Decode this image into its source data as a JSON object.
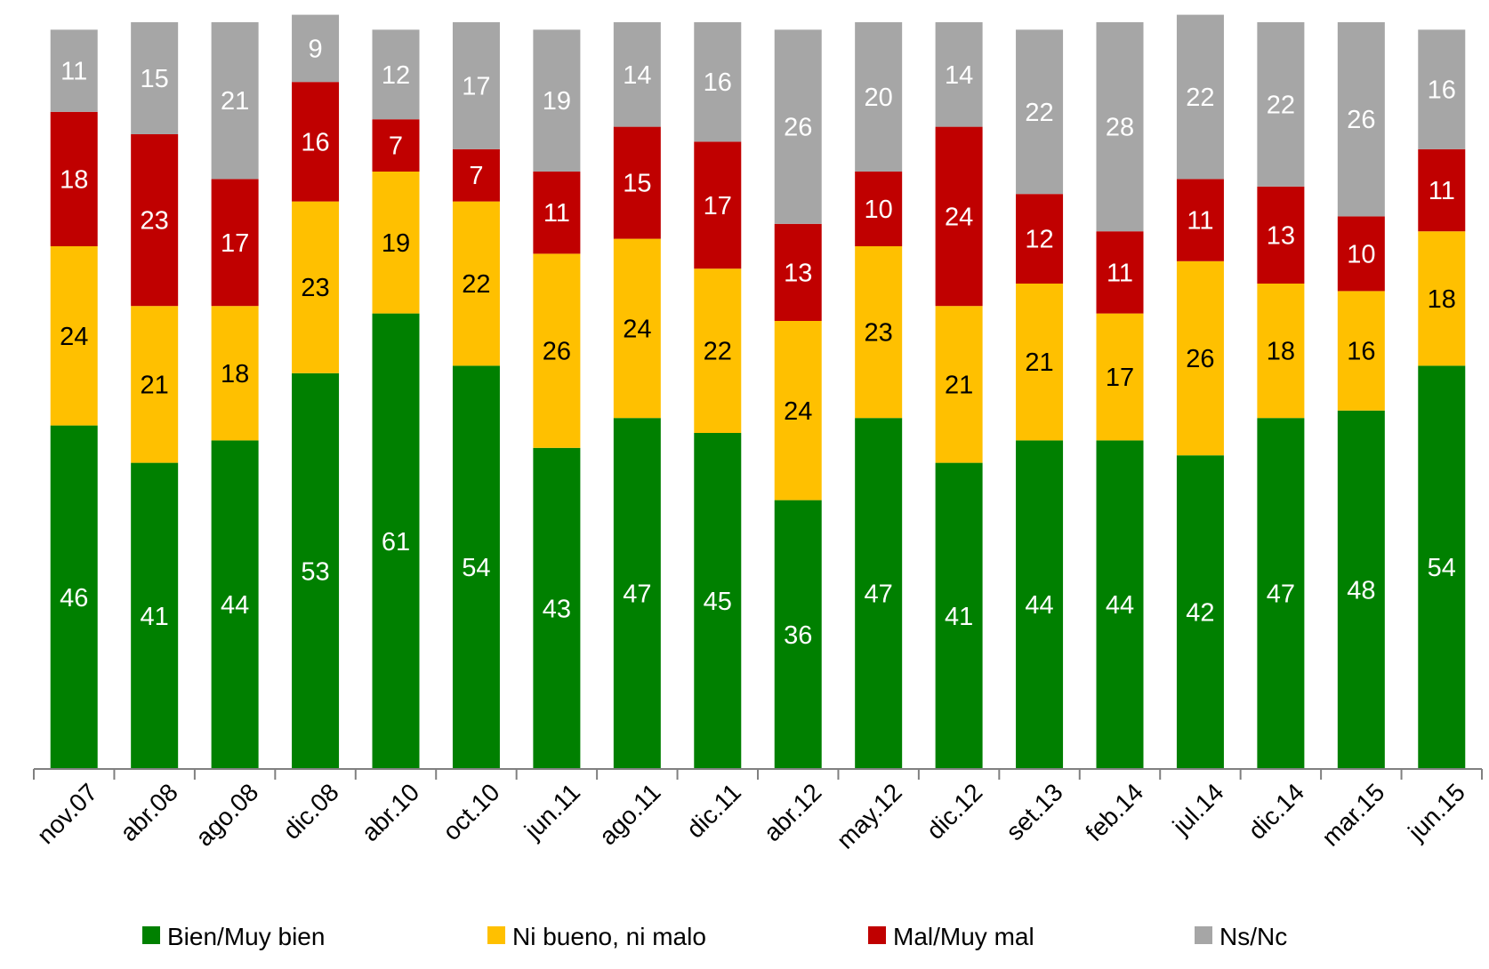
{
  "chart_data": {
    "type": "stacked-bar",
    "title": "",
    "xlabel": "",
    "ylabel": "",
    "ylim": [
      0,
      100
    ],
    "grid": false,
    "legend_position": "bottom",
    "categories": [
      "nov.07",
      "abr.08",
      "ago.08",
      "dic.08",
      "abr.10",
      "oct.10",
      "jun.11",
      "ago.11",
      "dic.11",
      "abr.12",
      "may.12",
      "dic.12",
      "set.13",
      "feb.14",
      "jul.14",
      "dic.14",
      "mar.15",
      "jun.15"
    ],
    "series": [
      {
        "name": "Bien/Muy bien",
        "color": "#008000",
        "label_color": "#ffffff",
        "values": [
          46,
          41,
          44,
          53,
          61,
          54,
          43,
          47,
          45,
          36,
          47,
          41,
          44,
          44,
          42,
          47,
          48,
          54
        ]
      },
      {
        "name": "Ni bueno, ni malo",
        "color": "#ffc000",
        "label_color": "#000000",
        "values": [
          24,
          21,
          18,
          23,
          19,
          22,
          26,
          24,
          22,
          24,
          23,
          21,
          21,
          17,
          26,
          18,
          16,
          18
        ]
      },
      {
        "name": "Mal/Muy mal",
        "color": "#c00000",
        "label_color": "#ffffff",
        "values": [
          18,
          23,
          17,
          16,
          7,
          7,
          11,
          15,
          17,
          13,
          10,
          24,
          12,
          11,
          11,
          13,
          10,
          11
        ]
      },
      {
        "name": "Ns/Nc",
        "color": "#a6a6a6",
        "label_color": "#ffffff",
        "values": [
          11,
          15,
          21,
          9,
          12,
          17,
          19,
          14,
          16,
          26,
          20,
          14,
          22,
          28,
          22,
          22,
          26,
          16
        ]
      }
    ]
  }
}
